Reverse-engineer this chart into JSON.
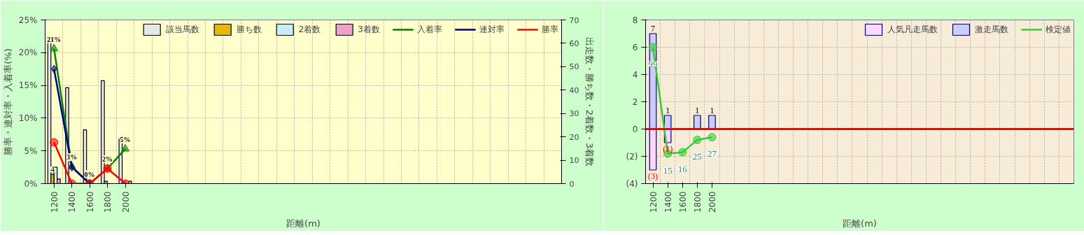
{
  "chart_data": [
    {
      "type": "bar",
      "xlabel": "距離(m)",
      "ylabel": "勝率・連対率・入着率(%)",
      "y2label": "出走数・勝ち数・2着数・3着数",
      "categories": [
        "1200",
        "1400",
        "1600",
        "1800",
        "2000",
        null,
        null,
        null,
        null,
        null,
        null,
        null,
        null,
        null,
        null,
        null,
        null,
        null,
        null,
        null,
        null,
        null,
        null,
        null,
        null,
        null,
        null,
        null,
        null
      ],
      "ylim": [
        0,
        25
      ],
      "yticks": [
        {
          "value": 0,
          "label": "0%"
        },
        {
          "value": 5,
          "label": "5%"
        },
        {
          "value": 10,
          "label": "10%"
        },
        {
          "value": 15,
          "label": "15%"
        },
        {
          "value": 20,
          "label": "20%"
        },
        {
          "value": 25,
          "label": "25%"
        }
      ],
      "y2lim": [
        0,
        70
      ],
      "y2ticks": [
        0,
        10,
        20,
        30,
        40,
        50,
        60,
        70
      ],
      "grid": true,
      "legend": "top",
      "series": [
        {
          "name": "該当馬数",
          "axis": "y2",
          "color": "#e8e8e8",
          "values": [
            63,
            41,
            23,
            44,
            19,
            null,
            null,
            null,
            null,
            null,
            null,
            null,
            null,
            null,
            null,
            null,
            null,
            null,
            null,
            null,
            null,
            null,
            null,
            null,
            null,
            null,
            null,
            null,
            null
          ]
        },
        {
          "name": "勝ち数",
          "axis": "y2",
          "color": "#e6b800",
          "values": [
            4,
            null,
            null,
            1,
            null,
            null,
            null,
            null,
            null,
            null,
            null,
            null,
            null,
            null,
            null,
            null,
            null,
            null,
            null,
            null,
            null,
            null,
            null,
            null,
            null,
            null,
            null,
            null,
            null
          ],
          "value_labels": [
            "4",
            null,
            null,
            null,
            null,
            null,
            null,
            null,
            null,
            null,
            null,
            null,
            null,
            null,
            null,
            null,
            null,
            null,
            null,
            null,
            null,
            null,
            null,
            null,
            null,
            null,
            null,
            null,
            null
          ]
        },
        {
          "name": "2着数",
          "axis": "y2",
          "color": "#c8ecf4",
          "values": [
            7,
            null,
            null,
            null,
            null,
            null,
            null,
            null,
            null,
            null,
            null,
            null,
            null,
            null,
            null,
            null,
            null,
            null,
            null,
            null,
            null,
            null,
            null,
            null,
            null,
            null,
            null,
            null,
            null
          ]
        },
        {
          "name": "3着数",
          "axis": "y2",
          "color": "#f0a0c8",
          "values": [
            2,
            null,
            null,
            null,
            1,
            null,
            null,
            null,
            null,
            null,
            null,
            null,
            null,
            null,
            null,
            null,
            null,
            null,
            null,
            null,
            null,
            null,
            null,
            null,
            null,
            null,
            null,
            null,
            null
          ]
        },
        {
          "name": "入着率",
          "type": "line",
          "color": "#008000",
          "marker": "triangle",
          "values": [
            20.6,
            2.6,
            0,
            2.3,
            5.3,
            null,
            null,
            null,
            null,
            null,
            null,
            null,
            null,
            null,
            null,
            null,
            null,
            null,
            null,
            null,
            null,
            null,
            null,
            null,
            null,
            null,
            null,
            null,
            null
          ],
          "value_labels": [
            "21%",
            "3%",
            "0%",
            "2%",
            "5%",
            null,
            null,
            null,
            null,
            null,
            null,
            null,
            null,
            null,
            null,
            null,
            null,
            null,
            null,
            null,
            null,
            null,
            null,
            null,
            null,
            null,
            null,
            null,
            null
          ]
        },
        {
          "name": "連対率",
          "type": "line",
          "color": "#000080",
          "marker": "diamond",
          "values": [
            17.5,
            2.5,
            0,
            null,
            null,
            null,
            null,
            null,
            null,
            null,
            null,
            null,
            null,
            null,
            null,
            null,
            null,
            null,
            null,
            null,
            null,
            null,
            null,
            null,
            null,
            null,
            null,
            null,
            null
          ]
        },
        {
          "name": "勝率",
          "type": "line",
          "color": "#ff0000",
          "marker": "circle",
          "values": [
            6.3,
            0,
            0,
            2.3,
            0,
            null,
            null,
            null,
            null,
            null,
            null,
            null,
            null,
            null,
            null,
            null,
            null,
            null,
            null,
            null,
            null,
            null,
            null,
            null,
            null,
            null,
            null,
            null,
            null
          ]
        }
      ]
    },
    {
      "type": "bar",
      "xlabel": "距離(m)",
      "stacked": true,
      "categories": [
        "1200",
        "1400",
        "1600",
        "1800",
        "2000",
        null,
        null,
        null,
        null,
        null,
        null,
        null,
        null,
        null,
        null,
        null,
        null,
        null,
        null,
        null,
        null,
        null,
        null,
        null,
        null,
        null,
        null,
        null,
        null
      ],
      "ylim": [
        -4,
        8
      ],
      "yticks": [
        8,
        6,
        4,
        2,
        0,
        {
          "value": -2,
          "label": "(2)"
        },
        {
          "value": -4,
          "label": "(4)"
        }
      ],
      "grid": true,
      "legend": "top",
      "ref_lines": [
        {
          "axis": "y",
          "value": 0,
          "color": "#ff0000"
        }
      ],
      "annotations": [
        {
          "text": "99",
          "x": "1200",
          "y": 6
        },
        {
          "text": "15",
          "x": "1400",
          "y": -1.8
        },
        {
          "text": "16",
          "x": "1600",
          "y": -1.7
        },
        {
          "text": "25",
          "x": "1800",
          "y": -0.8
        },
        {
          "text": "27",
          "x": "2000",
          "y": -0.6
        }
      ],
      "series": [
        {
          "name": "人気凡走馬数",
          "color": "#ffd6ff",
          "values": [
            -3,
            -1,
            null,
            null,
            null,
            null,
            null,
            null,
            null,
            null,
            null,
            null,
            null,
            null,
            null,
            null,
            null,
            null,
            null,
            null,
            null,
            null,
            null,
            null,
            null,
            null,
            null,
            null,
            null
          ],
          "value_labels": [
            "(3)",
            "(1)",
            null,
            null,
            null,
            null,
            null,
            null,
            null,
            null,
            null,
            null,
            null,
            null,
            null,
            null,
            null,
            null,
            null,
            null,
            null,
            null,
            null,
            null,
            null,
            null,
            null,
            null,
            null
          ]
        },
        {
          "name": "激走馬数",
          "color": "#ccccff",
          "values": [
            7,
            1,
            null,
            1,
            1,
            null,
            null,
            null,
            null,
            null,
            null,
            null,
            null,
            null,
            null,
            null,
            null,
            null,
            null,
            null,
            null,
            null,
            null,
            null,
            null,
            null,
            null,
            null,
            null
          ],
          "value_labels": [
            "7",
            "1",
            null,
            "1",
            "1",
            null,
            null,
            null,
            null,
            null,
            null,
            null,
            null,
            null,
            null,
            null,
            null,
            null,
            null,
            null,
            null,
            null,
            null,
            null,
            null,
            null,
            null,
            null,
            null
          ]
        },
        {
          "name": "検定値",
          "type": "line",
          "color": "#33cc33",
          "marker": "circle",
          "values": [
            6,
            -1.8,
            -1.7,
            -0.8,
            -0.6,
            null,
            null,
            null,
            null,
            null,
            null,
            null,
            null,
            null,
            null,
            null,
            null,
            null,
            null,
            null,
            null,
            null,
            null,
            null,
            null,
            null,
            null,
            null,
            null
          ]
        }
      ]
    }
  ]
}
